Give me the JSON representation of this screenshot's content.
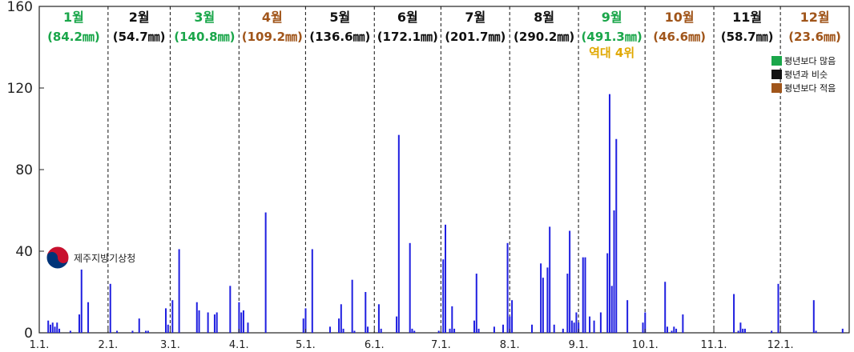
{
  "chart_data": {
    "type": "bar",
    "ylim": [
      0,
      160
    ],
    "yticks": [
      0,
      40,
      80,
      120,
      160
    ],
    "grid": false,
    "bar_color": "#1f1fe0",
    "status_colors": {
      "above": "#1aa64a",
      "similar": "#111111",
      "below": "#a0551a"
    },
    "highlight_color": "#e0a800",
    "month_start_days": [
      1,
      32,
      60,
      91,
      121,
      152,
      182,
      213,
      244,
      274,
      305,
      335,
      366
    ],
    "xtick_labels": [
      "1.1.",
      "2.1.",
      "3.1.",
      "4.1.",
      "5.1.",
      "6.1.",
      "7.1.",
      "8.1.",
      "9.1.",
      "10.1.",
      "11.1.",
      "12.1."
    ],
    "months": [
      {
        "name": "1월",
        "total": "(84.2㎜)",
        "status": "above"
      },
      {
        "name": "2월",
        "total": "(54.7㎜)",
        "status": "similar"
      },
      {
        "name": "3월",
        "total": "(140.8㎜)",
        "status": "above"
      },
      {
        "name": "4월",
        "total": "(109.2㎜)",
        "status": "below"
      },
      {
        "name": "5월",
        "total": "(136.6㎜)",
        "status": "similar"
      },
      {
        "name": "6월",
        "total": "(172.1㎜)",
        "status": "similar"
      },
      {
        "name": "7월",
        "total": "(201.7㎜)",
        "status": "similar"
      },
      {
        "name": "8월",
        "total": "(290.2㎜)",
        "status": "similar"
      },
      {
        "name": "9월",
        "total": "(491.3㎜)",
        "status": "above",
        "note": "역대 4위"
      },
      {
        "name": "10월",
        "total": "(46.6㎜)",
        "status": "below"
      },
      {
        "name": "11월",
        "total": "(58.7㎜)",
        "status": "similar"
      },
      {
        "name": "12월",
        "total": "(23.6㎜)",
        "status": "below"
      }
    ],
    "legend": {
      "position": "top-right",
      "items": [
        {
          "label": "평년보다 많음",
          "status": "above"
        },
        {
          "label": "평년과 비슷",
          "status": "similar"
        },
        {
          "label": "평년보다 적음",
          "status": "below"
        }
      ]
    },
    "daily": [
      [
        5,
        6
      ],
      [
        6,
        4
      ],
      [
        7,
        5
      ],
      [
        8,
        3
      ],
      [
        9,
        5
      ],
      [
        10,
        2
      ],
      [
        15,
        1
      ],
      [
        19,
        9
      ],
      [
        20,
        31
      ],
      [
        23,
        15
      ],
      [
        33,
        24
      ],
      [
        36,
        1
      ],
      [
        43,
        1
      ],
      [
        46,
        7
      ],
      [
        49,
        1
      ],
      [
        50,
        1
      ],
      [
        58,
        12
      ],
      [
        59,
        4
      ],
      [
        61,
        16
      ],
      [
        64,
        41
      ],
      [
        72,
        15
      ],
      [
        73,
        11
      ],
      [
        77,
        10
      ],
      [
        80,
        9
      ],
      [
        81,
        10
      ],
      [
        87,
        23
      ],
      [
        91,
        15
      ],
      [
        92,
        10
      ],
      [
        93,
        11
      ],
      [
        95,
        5
      ],
      [
        103,
        59
      ],
      [
        120,
        7
      ],
      [
        121,
        12
      ],
      [
        124,
        41
      ],
      [
        132,
        3
      ],
      [
        136,
        7
      ],
      [
        137,
        14
      ],
      [
        138,
        2
      ],
      [
        142,
        26
      ],
      [
        143,
        1
      ],
      [
        148,
        20
      ],
      [
        149,
        3
      ],
      [
        154,
        14
      ],
      [
        155,
        2
      ],
      [
        162,
        8
      ],
      [
        163,
        97
      ],
      [
        168,
        44
      ],
      [
        169,
        2
      ],
      [
        170,
        1
      ],
      [
        181,
        1
      ],
      [
        183,
        36
      ],
      [
        184,
        53
      ],
      [
        186,
        2
      ],
      [
        187,
        13
      ],
      [
        188,
        2
      ],
      [
        197,
        6
      ],
      [
        198,
        29
      ],
      [
        199,
        2
      ],
      [
        206,
        3
      ],
      [
        210,
        4
      ],
      [
        212,
        44
      ],
      [
        213,
        8
      ],
      [
        214,
        16
      ],
      [
        223,
        4
      ],
      [
        227,
        34
      ],
      [
        228,
        27
      ],
      [
        230,
        32
      ],
      [
        231,
        52
      ],
      [
        233,
        4
      ],
      [
        237,
        2
      ],
      [
        239,
        29
      ],
      [
        240,
        50
      ],
      [
        241,
        6
      ],
      [
        242,
        5
      ],
      [
        243,
        10
      ],
      [
        244,
        5
      ],
      [
        246,
        37
      ],
      [
        247,
        37
      ],
      [
        249,
        8
      ],
      [
        251,
        6
      ],
      [
        254,
        10
      ],
      [
        257,
        39
      ],
      [
        258,
        117
      ],
      [
        259,
        23
      ],
      [
        260,
        60
      ],
      [
        261,
        95
      ],
      [
        266,
        16
      ],
      [
        273,
        5
      ],
      [
        274,
        10
      ],
      [
        283,
        25
      ],
      [
        284,
        3
      ],
      [
        286,
        1
      ],
      [
        287,
        3
      ],
      [
        288,
        2
      ],
      [
        291,
        9
      ],
      [
        314,
        19
      ],
      [
        316,
        1
      ],
      [
        317,
        5
      ],
      [
        318,
        2
      ],
      [
        319,
        2
      ],
      [
        331,
        1
      ],
      [
        334,
        24
      ],
      [
        350,
        16
      ],
      [
        351,
        1
      ],
      [
        363,
        2
      ]
    ]
  },
  "logo": {
    "text": "제주지방기상청"
  }
}
